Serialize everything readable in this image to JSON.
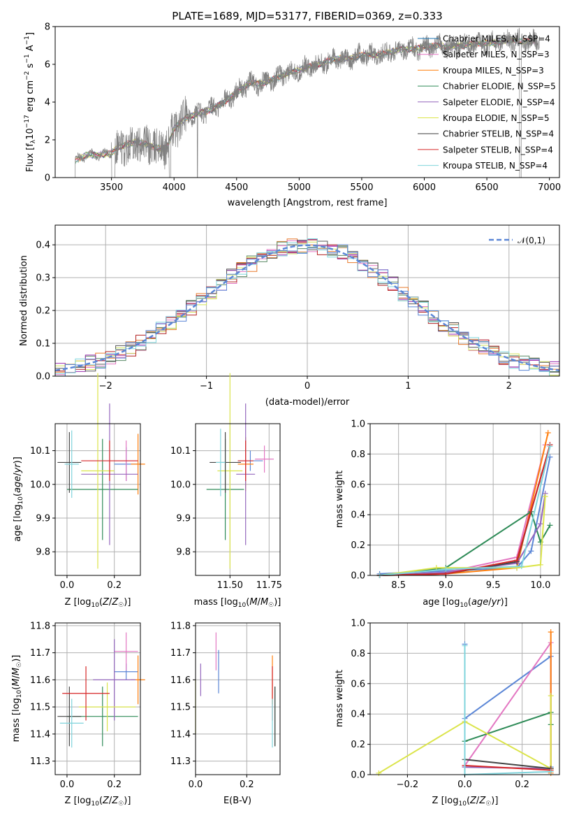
{
  "colors": {
    "chab_miles": "#1f77b4",
    "salp_miles": "#e377c2",
    "krou_miles": "#ff7f0e",
    "chab_elodie": "#2e8b57",
    "salp_elodie": "#9467bd",
    "krou_elodie": "#dbe44a",
    "chab_stelib": "#444444",
    "salp_stelib": "#d62728",
    "krou_stelib": "#80d4dc",
    "model_blue": "#5b86d6",
    "hist_orange": "#e87a2b",
    "hist_pink": "#e377c2",
    "hist_green": "#5a8a66",
    "hist_purple": "#9b2fae",
    "hist_yellow": "#d2e35a",
    "hist_gray": "#555555",
    "hist_red": "#b22222",
    "hist_cyan": "#7fd6de",
    "spectrum_gray": "#808080"
  },
  "chart_data": [
    {
      "type": "line",
      "title": "PLATE=1689, MJD=53177, FIBERID=0369, z=0.333",
      "xlabel": "wavelength [Angstrom, rest frame]",
      "ylabel": "Flux [f_λ 10^-17 erg cm^-2 s^-1 A^-1]",
      "xlim": [
        3050,
        7080
      ],
      "ylim": [
        0,
        8
      ],
      "xticks": [
        "3500",
        "4000",
        "4500",
        "5000",
        "5500",
        "6000",
        "6500",
        "7000"
      ],
      "yticks": [
        "0",
        "2",
        "4",
        "6",
        "8"
      ],
      "legend_position": "top-right",
      "series": [
        {
          "name": "Chabrier MILES, N_SSP=4"
        },
        {
          "name": "Salpeter MILES, N_SSP=3"
        },
        {
          "name": "Kroupa MILES, N_SSP=3"
        },
        {
          "name": "Chabrier ELODIE, N_SSP=5"
        },
        {
          "name": "Salpeter ELODIE, N_SSP=4"
        },
        {
          "name": "Kroupa ELODIE, N_SSP=5"
        },
        {
          "name": "Chabrier STELIB, N_SSP=4"
        },
        {
          "name": "Salpeter STELIB, N_SSP=4"
        },
        {
          "name": "Kroupa STELIB, N_SSP=4"
        }
      ],
      "continuum": {
        "x": [
          3210,
          3300,
          3400,
          3500,
          3550,
          3700,
          3800,
          3900,
          3950,
          4000,
          4100,
          4200,
          4300,
          4400,
          4500,
          4600,
          4700,
          4800,
          4900,
          5000,
          5100,
          5200,
          5300,
          5400,
          5500,
          5600,
          5700,
          5800,
          5900,
          6000,
          6100,
          6200,
          6300,
          6400,
          6500,
          6600,
          6700,
          6800,
          6900
        ],
        "y": [
          0.9,
          1.2,
          1.2,
          1.3,
          1.6,
          1.9,
          1.7,
          1.5,
          1.7,
          2.6,
          3.2,
          3.4,
          3.6,
          4.0,
          4.5,
          5.0,
          5.0,
          5.2,
          5.5,
          5.7,
          5.9,
          6.1,
          6.3,
          6.3,
          6.5,
          6.5,
          6.6,
          6.8,
          6.8,
          6.9,
          7.0,
          6.9,
          7.0,
          7.1,
          7.1,
          7.2,
          7.3,
          7.2,
          7.3
        ]
      }
    },
    {
      "type": "line",
      "xlabel": "(data-model)/error",
      "ylabel": "Normed distribution",
      "xlim": [
        -2.5,
        2.5
      ],
      "ylim": [
        0,
        0.46
      ],
      "xticks": [
        "−2",
        "−1",
        "0",
        "1",
        "2"
      ],
      "yticks": [
        "0.0",
        "0.1",
        "0.2",
        "0.3",
        "0.4"
      ],
      "grid": true,
      "legend_position": "top-right",
      "series": [
        {
          "name": "𝒩(0,1)",
          "kind": "normal-pdf",
          "mean": 0,
          "sigma": 1
        }
      ],
      "histogram_bin_width": 0.1,
      "histogram_count": 9
    },
    {
      "type": "scatter",
      "xlabel": "Z [log10(Z/Z☉)]",
      "ylabel": "age [log10(age/yr)]",
      "xlim": [
        -0.05,
        0.31
      ],
      "ylim": [
        9.73,
        10.18
      ],
      "xticks": [
        "0.0",
        "0.2"
      ],
      "yticks": [
        "9.8",
        "9.9",
        "10.0",
        "10.1"
      ],
      "grid": true,
      "points": [
        {
          "series": "Chabrier MILES",
          "x": 0.25,
          "y": 10.06,
          "xerr": 0.05,
          "yerr": 0.05
        },
        {
          "series": "Salpeter MILES",
          "x": 0.25,
          "y": 10.07,
          "xerr": 0.05,
          "yerr": 0.06
        },
        {
          "series": "Kroupa MILES",
          "x": 0.3,
          "y": 10.06,
          "xerr": 0.03,
          "yerr": 0.09
        },
        {
          "series": "Chabrier ELODIE",
          "x": 0.15,
          "y": 9.985,
          "xerr": 0.15,
          "yerr": 0.15
        },
        {
          "series": "Salpeter ELODIE",
          "x": 0.18,
          "y": 10.03,
          "xerr": 0.12,
          "yerr": 0.21
        },
        {
          "series": "Kroupa ELODIE",
          "x": 0.13,
          "y": 10.04,
          "xerr": 0.07,
          "yerr": 0.29
        },
        {
          "series": "Chabrier STELIB",
          "x": 0.01,
          "y": 10.065,
          "xerr": 0.05,
          "yerr": 0.09
        },
        {
          "series": "Salpeter STELIB",
          "x": 0.18,
          "y": 10.07,
          "xerr": 0.12,
          "yerr": 0.06
        },
        {
          "series": "Kroupa STELIB",
          "x": 0.02,
          "y": 10.06,
          "xerr": 0.03,
          "yerr": 0.1
        }
      ]
    },
    {
      "type": "scatter",
      "xlabel": "mass [log10(M/M☉)]",
      "xlim": [
        11.28,
        11.82
      ],
      "ylim": [
        9.73,
        10.18
      ],
      "xticks": [
        "11.50",
        "11.75"
      ],
      "yticks": [
        "9.8",
        "9.9",
        "10.0",
        "10.1"
      ],
      "grid": true,
      "points": [
        {
          "series": "Chabrier MILES",
          "x": 11.63,
          "y": 10.07,
          "xerr": 0.08,
          "yerr": 0.03
        },
        {
          "series": "Salpeter MILES",
          "x": 11.72,
          "y": 10.075,
          "xerr": 0.06,
          "yerr": 0.04
        },
        {
          "series": "Kroupa MILES",
          "x": 11.6,
          "y": 10.06,
          "xerr": 0.05,
          "yerr": 0.08
        },
        {
          "series": "Chabrier ELODIE",
          "x": 11.47,
          "y": 9.985,
          "xerr": 0.12,
          "yerr": 0.15
        },
        {
          "series": "Salpeter ELODIE",
          "x": 11.6,
          "y": 10.03,
          "xerr": 0.06,
          "yerr": 0.21
        },
        {
          "series": "Kroupa ELODIE",
          "x": 11.5,
          "y": 10.04,
          "xerr": 0.08,
          "yerr": 0.29
        },
        {
          "series": "Chabrier STELIB",
          "x": 11.47,
          "y": 10.065,
          "xerr": 0.1,
          "yerr": 0.09
        },
        {
          "series": "Salpeter STELIB",
          "x": 11.6,
          "y": 10.07,
          "xerr": 0.05,
          "yerr": 0.06
        },
        {
          "series": "Kroupa STELIB",
          "x": 11.44,
          "y": 10.065,
          "xerr": 0.03,
          "yerr": 0.1
        }
      ]
    },
    {
      "type": "line",
      "xlabel": "age [log10(age/yr)]",
      "ylabel": "mass weight",
      "xlim": [
        8.2,
        10.2
      ],
      "ylim": [
        0,
        1.0
      ],
      "xticks": [
        "8.5",
        "9.0",
        "9.5",
        "10.0"
      ],
      "yticks": [
        "0.0",
        "0.2",
        "0.4",
        "0.6",
        "0.8",
        "1.0"
      ],
      "grid": true,
      "series": [
        {
          "key": "chab_miles",
          "x": [
            8.3,
            9.0,
            9.75,
            9.9,
            10.1
          ],
          "y": [
            0.01,
            0.03,
            0.05,
            0.16,
            0.78
          ]
        },
        {
          "key": "salp_miles",
          "x": [
            8.3,
            9.0,
            9.75,
            10.05
          ],
          "y": [
            0.0,
            0.02,
            0.12,
            0.86
          ]
        },
        {
          "key": "krou_miles",
          "x": [
            8.3,
            9.0,
            9.75,
            10.08
          ],
          "y": [
            0.0,
            0.01,
            0.05,
            0.94
          ]
        },
        {
          "key": "chab_elodie",
          "x": [
            8.3,
            9.0,
            9.9,
            10.0,
            10.1
          ],
          "y": [
            0.0,
            0.05,
            0.42,
            0.22,
            0.33
          ]
        },
        {
          "key": "salp_elodie",
          "x": [
            8.3,
            9.0,
            9.75,
            10.0,
            10.05
          ],
          "y": [
            0.0,
            0.02,
            0.08,
            0.34,
            0.54
          ]
        },
        {
          "key": "krou_elodie",
          "x": [
            8.3,
            8.9,
            9.75,
            10.0,
            10.05
          ],
          "y": [
            0.0,
            0.05,
            0.05,
            0.07,
            0.52
          ]
        },
        {
          "key": "chab_stelib",
          "x": [
            8.3,
            9.0,
            9.75,
            10.1
          ],
          "y": [
            0.0,
            0.01,
            0.09,
            0.86
          ]
        },
        {
          "key": "salp_stelib",
          "x": [
            8.3,
            9.0,
            9.75,
            10.1
          ],
          "y": [
            0.0,
            0.01,
            0.1,
            0.86
          ]
        },
        {
          "key": "krou_stelib",
          "x": [
            8.3,
            9.0,
            9.8,
            10.1
          ],
          "y": [
            0.0,
            0.04,
            0.06,
            0.85
          ]
        }
      ]
    },
    {
      "type": "scatter",
      "xlabel": "Z [log10(Z/Z☉)]",
      "ylabel": "mass [log10(M/M☉)]",
      "xlim": [
        -0.05,
        0.31
      ],
      "ylim": [
        11.25,
        11.81
      ],
      "xticks": [
        "0.0",
        "0.2"
      ],
      "yticks": [
        "11.3",
        "11.4",
        "11.5",
        "11.6",
        "11.7",
        "11.8"
      ],
      "grid": true,
      "points": [
        {
          "series": "Chabrier MILES",
          "x": 0.25,
          "y": 11.63,
          "xerr": 0.05,
          "yerr": 0.03
        },
        {
          "series": "Salpeter MILES",
          "x": 0.25,
          "y": 11.705,
          "xerr": 0.05,
          "yerr": 0.07
        },
        {
          "series": "Kroupa MILES",
          "x": 0.3,
          "y": 11.6,
          "xerr": 0.03,
          "yerr": 0.09
        },
        {
          "series": "Chabrier ELODIE",
          "x": 0.15,
          "y": 11.465,
          "xerr": 0.15,
          "yerr": 0.11
        },
        {
          "series": "Salpeter ELODIE",
          "x": 0.2,
          "y": 11.6,
          "xerr": 0.09,
          "yerr": 0.15
        },
        {
          "series": "Kroupa ELODIE",
          "x": 0.17,
          "y": 11.5,
          "xerr": 0.12,
          "yerr": 0.09
        },
        {
          "series": "Chabrier STELIB",
          "x": 0.01,
          "y": 11.465,
          "xerr": 0.05,
          "yerr": 0.11
        },
        {
          "series": "Salpeter STELIB",
          "x": 0.08,
          "y": 11.55,
          "xerr": 0.1,
          "yerr": 0.1
        },
        {
          "series": "Kroupa STELIB",
          "x": 0.02,
          "y": 11.44,
          "xerr": 0.05,
          "yerr": 0.09
        }
      ]
    },
    {
      "type": "scatter",
      "xlabel": "E(B-V)",
      "xlim": [
        0,
        0.33
      ],
      "ylim": [
        11.25,
        11.81
      ],
      "xticks": [
        "0.0",
        "0.2"
      ],
      "yticks": [
        "11.3",
        "11.4",
        "11.5",
        "11.6",
        "11.7",
        "11.8"
      ],
      "grid": true,
      "points": [
        {
          "series": "Chabrier MILES",
          "x": 0.09,
          "y": 11.63,
          "xerr": 0,
          "yerr": 0.08
        },
        {
          "series": "Salpeter MILES",
          "x": 0.08,
          "y": 11.705,
          "xerr": 0,
          "yerr": 0.07
        },
        {
          "series": "Kroupa MILES",
          "x": 0.3,
          "y": 11.6,
          "xerr": 0,
          "yerr": 0.09
        },
        {
          "series": "Chabrier ELODIE",
          "x": 0.31,
          "y": 11.465,
          "xerr": 0,
          "yerr": 0.11
        },
        {
          "series": "Salpeter ELODIE",
          "x": 0.02,
          "y": 11.6,
          "xerr": 0,
          "yerr": 0.06
        },
        {
          "series": "Kroupa ELODIE",
          "x": 0.0,
          "y": 11.5,
          "xerr": 0,
          "yerr": 0.1
        },
        {
          "series": "Chabrier STELIB",
          "x": 0.31,
          "y": 11.465,
          "xerr": 0,
          "yerr": 0.11
        },
        {
          "series": "Salpeter STELIB",
          "x": 0.3,
          "y": 11.55,
          "xerr": 0,
          "yerr": 0.1
        },
        {
          "series": "Kroupa STELIB",
          "x": 0.3,
          "y": 11.44,
          "xerr": 0,
          "yerr": 0.09
        }
      ]
    },
    {
      "type": "line",
      "xlabel": "Z [log10(Z/Z☉)]",
      "ylabel": "mass weight",
      "xlim": [
        -0.33,
        0.33
      ],
      "ylim": [
        0,
        1.0
      ],
      "xticks": [
        "−0.2",
        "0.0",
        "0.2"
      ],
      "yticks": [
        "0.0",
        "0.2",
        "0.4",
        "0.6",
        "0.8",
        "1.0"
      ],
      "grid": true,
      "series": [
        {
          "key": "chab_miles",
          "x": [
            0,
            0,
            0.3,
            0.3
          ],
          "y": [
            0.86,
            0.37,
            0.78,
            0.05
          ]
        },
        {
          "key": "salp_miles",
          "x": [
            0,
            0.3,
            0.3
          ],
          "y": [
            0.06,
            0.87,
            0.04
          ]
        },
        {
          "key": "krou_miles",
          "x": [
            0.3,
            0.3
          ],
          "y": [
            0.94,
            0.01
          ]
        },
        {
          "key": "chab_elodie",
          "x": [
            0,
            0.3,
            0.3
          ],
          "y": [
            0.22,
            0.41,
            0.33
          ]
        },
        {
          "key": "salp_elodie",
          "x": [
            0,
            0.3
          ],
          "y": [
            0.05,
            0.04
          ]
        },
        {
          "key": "krou_elodie",
          "x": [
            -0.3,
            0,
            0.3,
            0.3
          ],
          "y": [
            0.01,
            0.35,
            0.04,
            0.52
          ]
        },
        {
          "key": "chab_stelib",
          "x": [
            0,
            0.3
          ],
          "y": [
            0.1,
            0.04
          ]
        },
        {
          "key": "salp_stelib",
          "x": [
            0,
            0.3
          ],
          "y": [
            0.06,
            0.03
          ]
        },
        {
          "key": "krou_stelib",
          "x": [
            0,
            0,
            0.3
          ],
          "y": [
            0.85,
            0.0,
            0.02
          ]
        }
      ]
    }
  ]
}
